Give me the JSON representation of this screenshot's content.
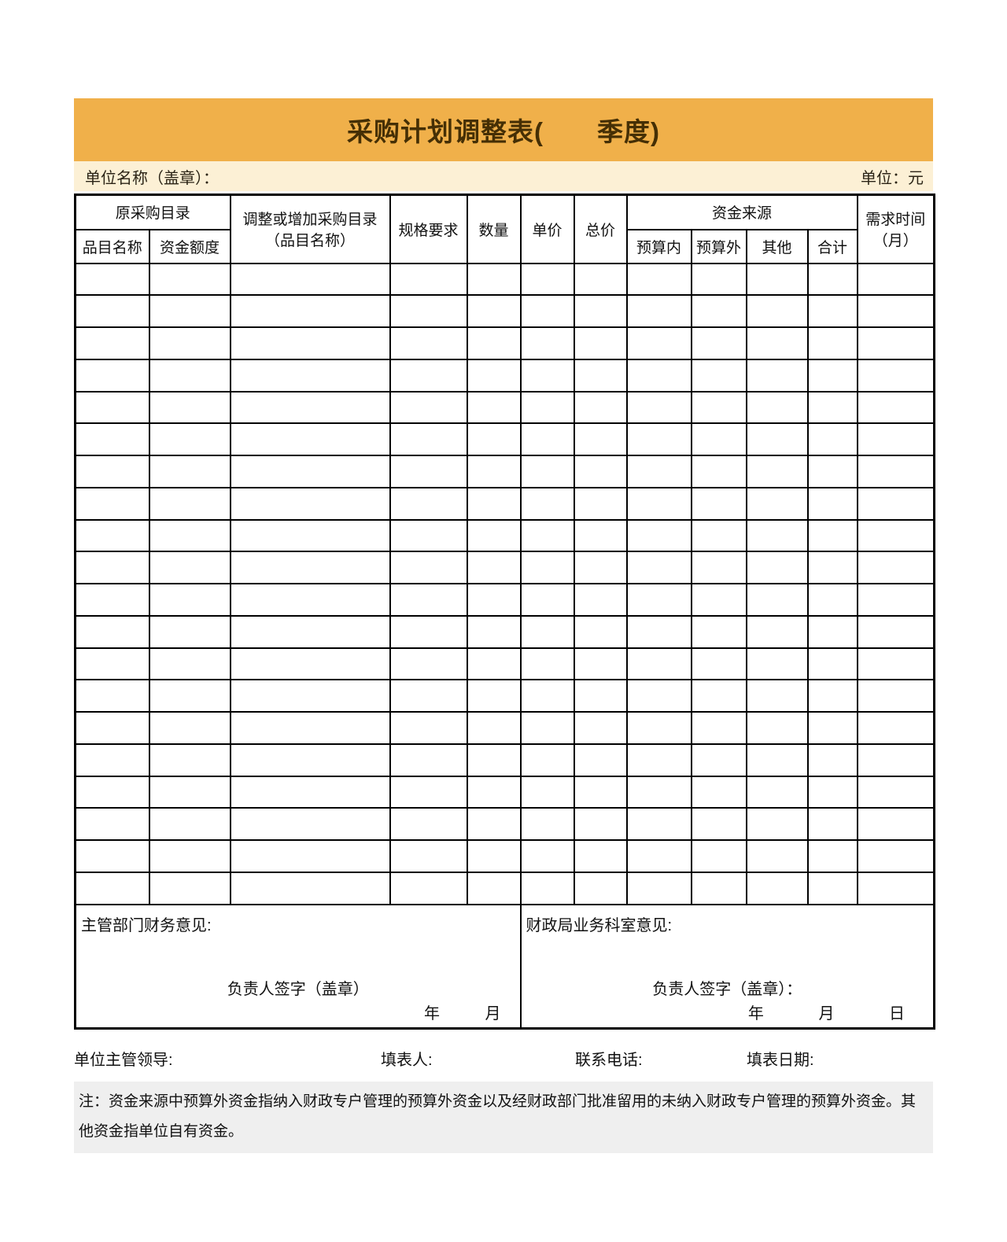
{
  "title": "采购计划调整表(　　季度)",
  "meta": {
    "unit_name_label": "单位名称（盖章）：",
    "unit_label": "单位：元"
  },
  "table": {
    "header": {
      "original_catalog": "原采购目录",
      "item_name": "品目名称",
      "fund_amount": "资金额度",
      "adjusted_catalog_line1": "调整或增加采购目录",
      "adjusted_catalog_line2": "（品目名称）",
      "spec": "规格要求",
      "quantity": "数量",
      "unit_price": "单价",
      "total_price": "总价",
      "fund_source": "资金来源",
      "in_budget": "预算内",
      "out_budget": "预算外",
      "other": "其他",
      "total": "合计",
      "demand_time_line1": "需求时间",
      "demand_time_line2": "（月）"
    },
    "empty_rows": 20,
    "columns": 12
  },
  "opinions": {
    "left": {
      "title": "主管部门财务意见:",
      "sign": "负责人签字（盖章）",
      "date_parts": [
        "年",
        "月"
      ]
    },
    "right": {
      "title": "财政局业务科室意见:",
      "sign": "负责人签字（盖章）：",
      "date_parts": [
        "年",
        "月",
        "日"
      ]
    }
  },
  "footer": {
    "leader": "单位主管领导:",
    "filler": "填表人:",
    "phone": "联系电话:",
    "date": "填表日期:"
  },
  "note": "注：资金来源中预算外资金指纳入财政专户管理的预算外资金以及经财政部门批准留用的未纳入财政专户管理的预算外资金。其他资金指单位自有资金。",
  "colors": {
    "banner": "#F0B04A",
    "meta_bar": "#FCF0D5",
    "title_text": "#452F05",
    "note_bg": "#EFEFEF",
    "grid_line": "#000000"
  }
}
